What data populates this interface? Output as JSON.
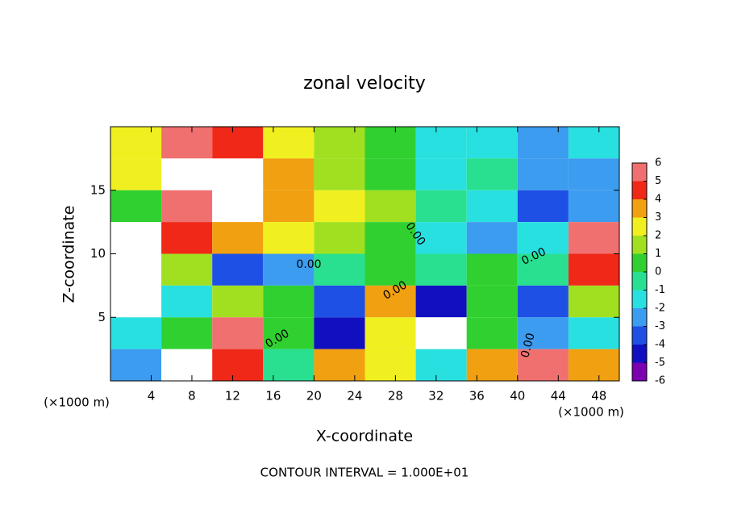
{
  "chart_data": {
    "type": "heatmap",
    "title": "zonal velocity",
    "x_label": "X-coordinate",
    "y_label": "Z-coordinate",
    "x_unit_label": "(×1000 m)",
    "x_unit_label_right": "(×1000 m)",
    "note": "CONTOUR INTERVAL = 1.000E+01",
    "xlim": [
      0,
      50
    ],
    "ylim": [
      0,
      20
    ],
    "xticks": [
      4,
      8,
      12,
      16,
      20,
      24,
      28,
      32,
      36,
      40,
      44,
      48
    ],
    "yticks": [
      5,
      10,
      15
    ],
    "x_edges": [
      0,
      5,
      10,
      15,
      20,
      25,
      30,
      35,
      40,
      45,
      50
    ],
    "y_edges": [
      20,
      17.5,
      15,
      12.5,
      10,
      7.5,
      5,
      2.5,
      0
    ],
    "z": [
      [
        2,
        5,
        4,
        2,
        1,
        0,
        -2,
        -2,
        -3,
        -2
      ],
      [
        2,
        7,
        7,
        3,
        1,
        0,
        -2,
        -1,
        -3,
        -3
      ],
      [
        0,
        5,
        7,
        3,
        2,
        1,
        -1,
        -2,
        -4,
        -3
      ],
      [
        6,
        4,
        3,
        2,
        1,
        0,
        -2,
        -3,
        -2,
        5
      ],
      [
        7,
        1,
        -4,
        -3,
        -1,
        0,
        -1,
        0,
        -1,
        4
      ],
      [
        7,
        -2,
        1,
        0,
        -4,
        3,
        -5,
        0,
        -4,
        1
      ],
      [
        -2,
        0,
        5,
        0,
        -5,
        2,
        8,
        0,
        -3,
        -2
      ],
      [
        -3,
        7,
        4,
        -1,
        3,
        2,
        -2,
        3,
        5,
        3
      ]
    ],
    "clim": [
      -6,
      6
    ],
    "colorbar_ticks": [
      6,
      5,
      4,
      3,
      2,
      1,
      0,
      -1,
      -2,
      -3,
      -4,
      -5,
      -6
    ],
    "colors": [
      "#7a00b0",
      "#1010c0",
      "#1e50e6",
      "#3c9cf0",
      "#28e0e0",
      "#28e090",
      "#30d030",
      "#a0e020",
      "#f0f020",
      "#f0a010",
      "#f02818",
      "#f07070"
    ],
    "contour_labels": [
      "0.00",
      "0.00",
      "0.00",
      "0.00",
      "0.00",
      "0.00"
    ]
  }
}
